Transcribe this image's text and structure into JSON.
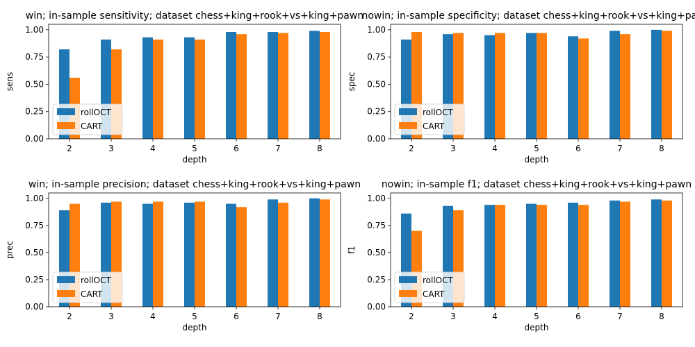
{
  "colors": {
    "rollOCT": "#1f77b4",
    "CART": "#ff7f0e"
  },
  "chart_data": [
    {
      "type": "bar",
      "title": "win; in-sample sensitivity; dataset chess+king+rook+vs+king+pawn",
      "xlabel": "depth",
      "ylabel": "sens",
      "categories": [
        "2",
        "3",
        "4",
        "5",
        "6",
        "7",
        "8"
      ],
      "ylim": [
        0,
        1.05
      ],
      "yticks": [
        "0.00",
        "0.25",
        "0.50",
        "0.75",
        "1.00"
      ],
      "legend_position": "lower-left",
      "series": [
        {
          "name": "rollOCT",
          "values": [
            0.82,
            0.91,
            0.93,
            0.93,
            0.98,
            0.98,
            0.99
          ]
        },
        {
          "name": "CART",
          "values": [
            0.56,
            0.82,
            0.91,
            0.91,
            0.96,
            0.97,
            0.98
          ]
        }
      ]
    },
    {
      "type": "bar",
      "title": "nowin; in-sample specificity; dataset chess+king+rook+vs+king+pawn",
      "xlabel": "depth",
      "ylabel": "spec",
      "categories": [
        "2",
        "3",
        "4",
        "5",
        "6",
        "7",
        "8"
      ],
      "ylim": [
        0,
        1.05
      ],
      "yticks": [
        "0.00",
        "0.25",
        "0.50",
        "0.75",
        "1.00"
      ],
      "legend_position": "lower-left",
      "series": [
        {
          "name": "rollOCT",
          "values": [
            0.91,
            0.96,
            0.95,
            0.97,
            0.94,
            0.99,
            1.0
          ]
        },
        {
          "name": "CART",
          "values": [
            0.98,
            0.97,
            0.97,
            0.97,
            0.92,
            0.96,
            0.99
          ]
        }
      ]
    },
    {
      "type": "bar",
      "title": "win; in-sample precision; dataset chess+king+rook+vs+king+pawn",
      "xlabel": "depth",
      "ylabel": "prec",
      "categories": [
        "2",
        "3",
        "4",
        "5",
        "6",
        "7",
        "8"
      ],
      "ylim": [
        0,
        1.05
      ],
      "yticks": [
        "0.00",
        "0.25",
        "0.50",
        "0.75",
        "1.00"
      ],
      "legend_position": "lower-left",
      "series": [
        {
          "name": "rollOCT",
          "values": [
            0.89,
            0.96,
            0.95,
            0.96,
            0.95,
            0.99,
            1.0
          ]
        },
        {
          "name": "CART",
          "values": [
            0.95,
            0.97,
            0.97,
            0.97,
            0.92,
            0.96,
            0.99
          ]
        }
      ]
    },
    {
      "type": "bar",
      "title": "nowin; in-sample f1; dataset chess+king+rook+vs+king+pawn",
      "xlabel": "depth",
      "ylabel": "f1",
      "categories": [
        "2",
        "3",
        "4",
        "5",
        "6",
        "7",
        "8"
      ],
      "ylim": [
        0,
        1.05
      ],
      "yticks": [
        "0.00",
        "0.25",
        "0.50",
        "0.75",
        "1.00"
      ],
      "legend_position": "lower-left",
      "series": [
        {
          "name": "rollOCT",
          "values": [
            0.86,
            0.93,
            0.94,
            0.95,
            0.96,
            0.98,
            0.99
          ]
        },
        {
          "name": "CART",
          "values": [
            0.7,
            0.89,
            0.94,
            0.94,
            0.94,
            0.97,
            0.98
          ]
        }
      ]
    }
  ]
}
